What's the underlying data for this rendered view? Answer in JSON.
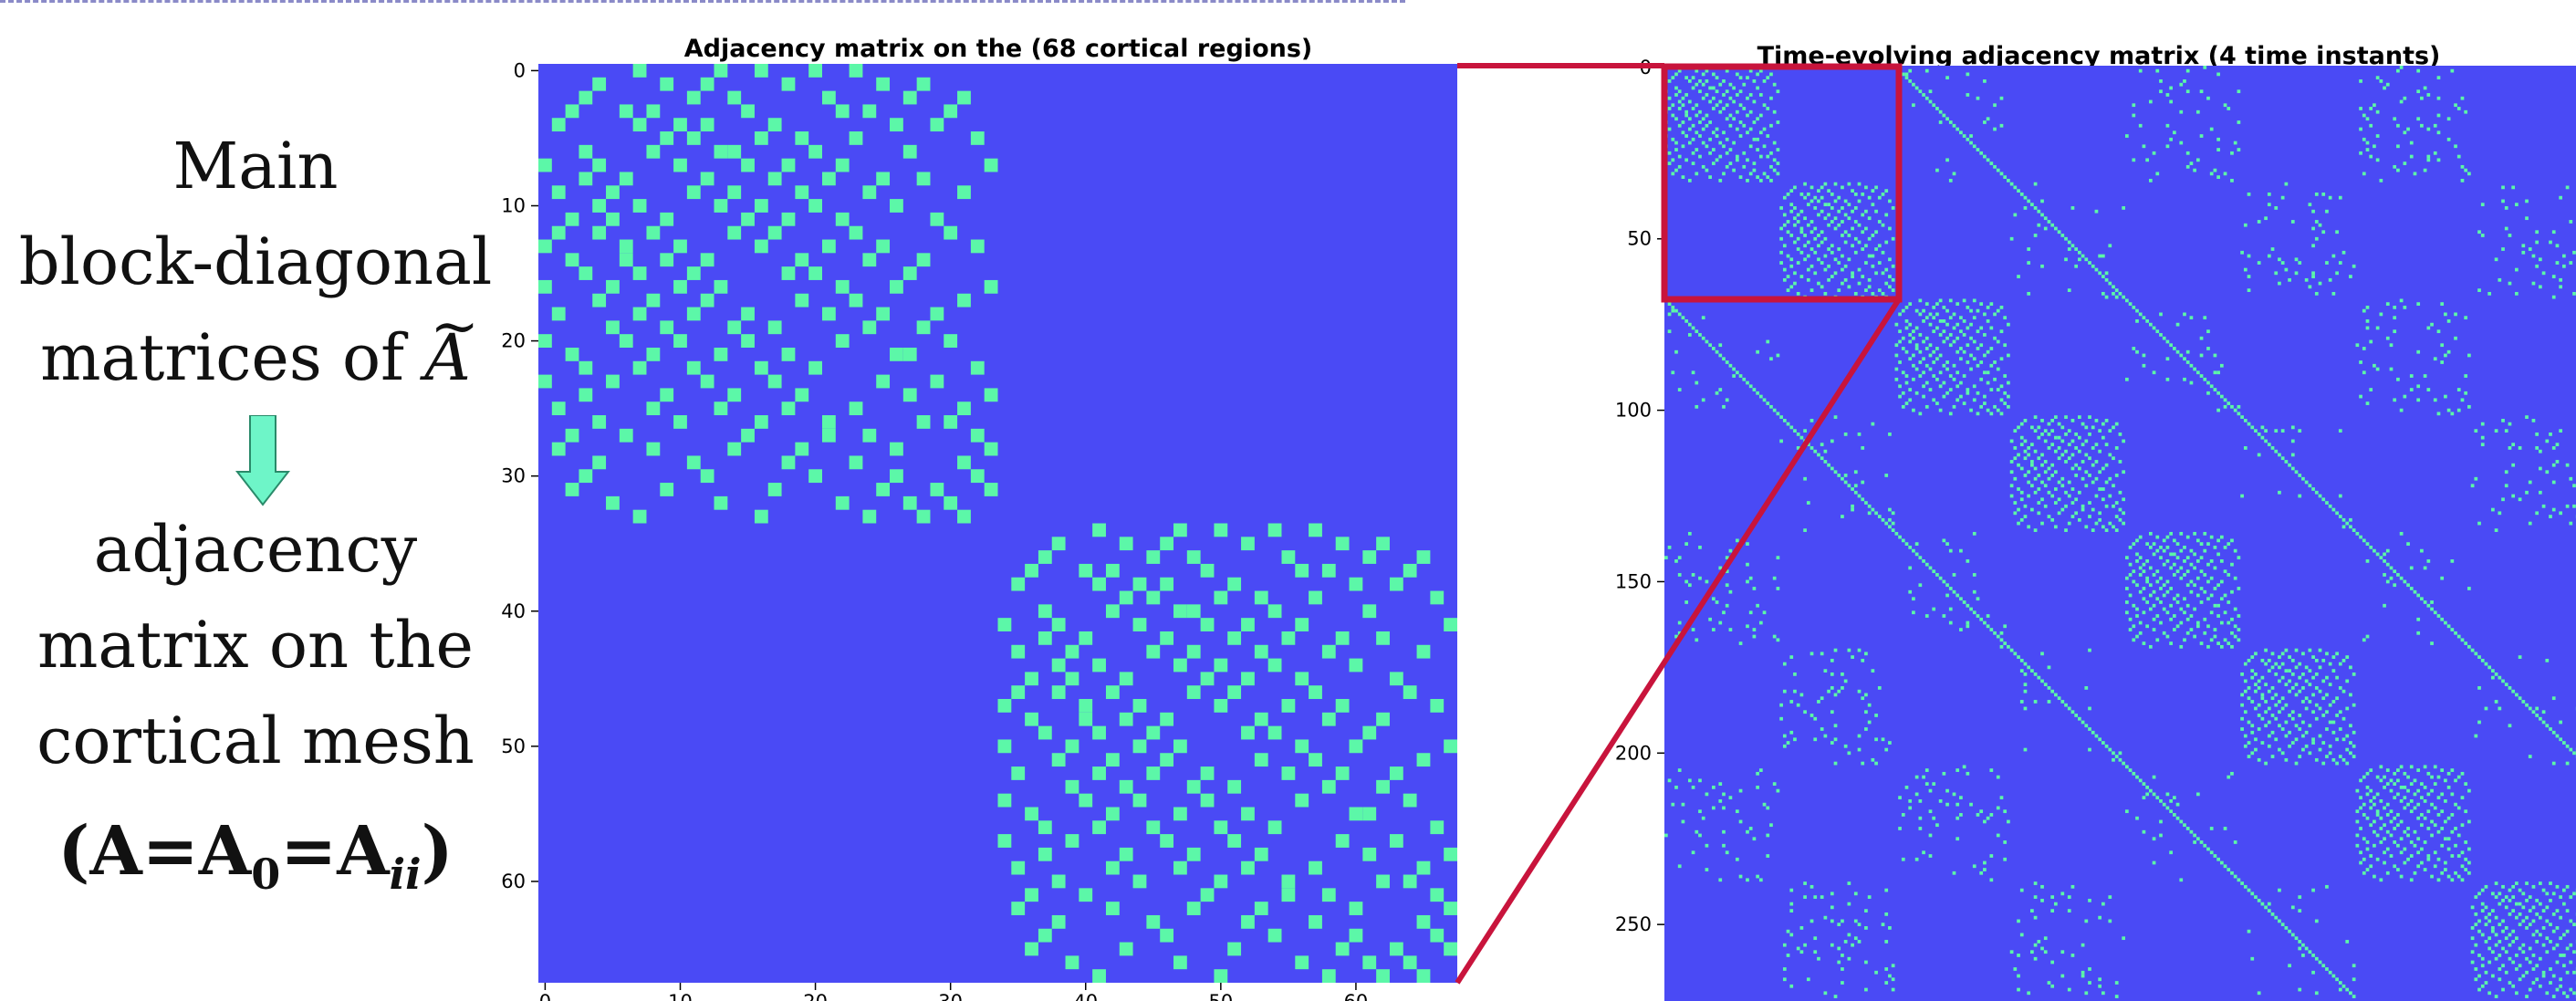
{
  "left_panel": {
    "lines": [
      "Main",
      "block-diagonal",
      "matrices of"
    ],
    "symbol": "A",
    "lines_after_arrow": [
      "adjacency",
      "matrix on the",
      "cortical mesh"
    ],
    "formula": {
      "open": "(",
      "a": "A",
      "eq1": "=",
      "a0": "A",
      "sub0": "0",
      "eq2": "=",
      "aii": "A",
      "subii": "ii",
      "close": ")"
    }
  },
  "colors": {
    "background": "#4a4af5",
    "edge": "#5cf7a8",
    "highlight": "#c8143c",
    "arrow": "#6ef5c8"
  },
  "chart_data": [
    {
      "type": "heatmap",
      "title": "Adjacency matrix on the (68 cortical regions)",
      "n": 68,
      "xticks": [
        0,
        10,
        20,
        30,
        40,
        50,
        60
      ],
      "yticks": [
        0,
        10,
        20,
        30,
        40,
        50,
        60
      ],
      "description": "Binary symmetric 68x68 adjacency matrix with two diagonal blocks (regions 0-33 and 34-67), each block containing the same sparse connection pattern.",
      "block_size": 34,
      "block_edges": [
        [
          0,
          7
        ],
        [
          0,
          13
        ],
        [
          0,
          16
        ],
        [
          0,
          20
        ],
        [
          0,
          23
        ],
        [
          1,
          4
        ],
        [
          1,
          9
        ],
        [
          1,
          12
        ],
        [
          1,
          18
        ],
        [
          1,
          25
        ],
        [
          1,
          28
        ],
        [
          2,
          3
        ],
        [
          2,
          11
        ],
        [
          2,
          14
        ],
        [
          2,
          21
        ],
        [
          2,
          27
        ],
        [
          2,
          31
        ],
        [
          3,
          6
        ],
        [
          3,
          8
        ],
        [
          3,
          15
        ],
        [
          3,
          22
        ],
        [
          3,
          24
        ],
        [
          3,
          30
        ],
        [
          4,
          7
        ],
        [
          4,
          10
        ],
        [
          4,
          12
        ],
        [
          4,
          17
        ],
        [
          4,
          26
        ],
        [
          4,
          29
        ],
        [
          5,
          9
        ],
        [
          5,
          11
        ],
        [
          5,
          16
        ],
        [
          5,
          19
        ],
        [
          5,
          23
        ],
        [
          5,
          32
        ],
        [
          6,
          8
        ],
        [
          6,
          13
        ],
        [
          6,
          14
        ],
        [
          6,
          20
        ],
        [
          6,
          27
        ],
        [
          7,
          10
        ],
        [
          7,
          15
        ],
        [
          7,
          18
        ],
        [
          7,
          22
        ],
        [
          7,
          33
        ],
        [
          8,
          12
        ],
        [
          8,
          17
        ],
        [
          8,
          21
        ],
        [
          8,
          25
        ],
        [
          8,
          28
        ],
        [
          9,
          11
        ],
        [
          9,
          14
        ],
        [
          9,
          19
        ],
        [
          9,
          24
        ],
        [
          9,
          31
        ],
        [
          10,
          13
        ],
        [
          10,
          16
        ],
        [
          10,
          20
        ],
        [
          10,
          26
        ],
        [
          11,
          15
        ],
        [
          11,
          18
        ],
        [
          11,
          22
        ],
        [
          11,
          29
        ],
        [
          12,
          14
        ],
        [
          12,
          17
        ],
        [
          12,
          23
        ],
        [
          12,
          30
        ],
        [
          13,
          16
        ],
        [
          13,
          21
        ],
        [
          13,
          25
        ],
        [
          13,
          32
        ],
        [
          14,
          19
        ],
        [
          14,
          24
        ],
        [
          14,
          28
        ],
        [
          15,
          18
        ],
        [
          15,
          20
        ],
        [
          15,
          27
        ],
        [
          16,
          22
        ],
        [
          16,
          26
        ],
        [
          16,
          33
        ],
        [
          17,
          19
        ],
        [
          17,
          23
        ],
        [
          17,
          31
        ],
        [
          18,
          21
        ],
        [
          18,
          25
        ],
        [
          18,
          29
        ],
        [
          19,
          24
        ],
        [
          19,
          28
        ],
        [
          20,
          22
        ],
        [
          20,
          30
        ],
        [
          21,
          26
        ],
        [
          21,
          27
        ],
        [
          22,
          32
        ],
        [
          23,
          25
        ],
        [
          23,
          29
        ],
        [
          24,
          27
        ],
        [
          24,
          33
        ],
        [
          25,
          31
        ],
        [
          26,
          28
        ],
        [
          26,
          30
        ],
        [
          27,
          32
        ],
        [
          28,
          33
        ],
        [
          29,
          31
        ],
        [
          30,
          32
        ],
        [
          31,
          33
        ]
      ]
    },
    {
      "type": "heatmap",
      "title": "Time-evolving adjacency matrix (4 time instants)",
      "n": 272,
      "blocks": 4,
      "xticks": [
        0,
        50,
        100,
        150,
        200,
        250
      ],
      "yticks": [
        0,
        50,
        100,
        150,
        200,
        250
      ],
      "description": "272x272 block matrix: block-diagonal repeats of the 68x68 adjacency matrix, identity-like diagonal couplings between consecutive time instants, and sparse off-diagonal cross-time entries."
    }
  ]
}
